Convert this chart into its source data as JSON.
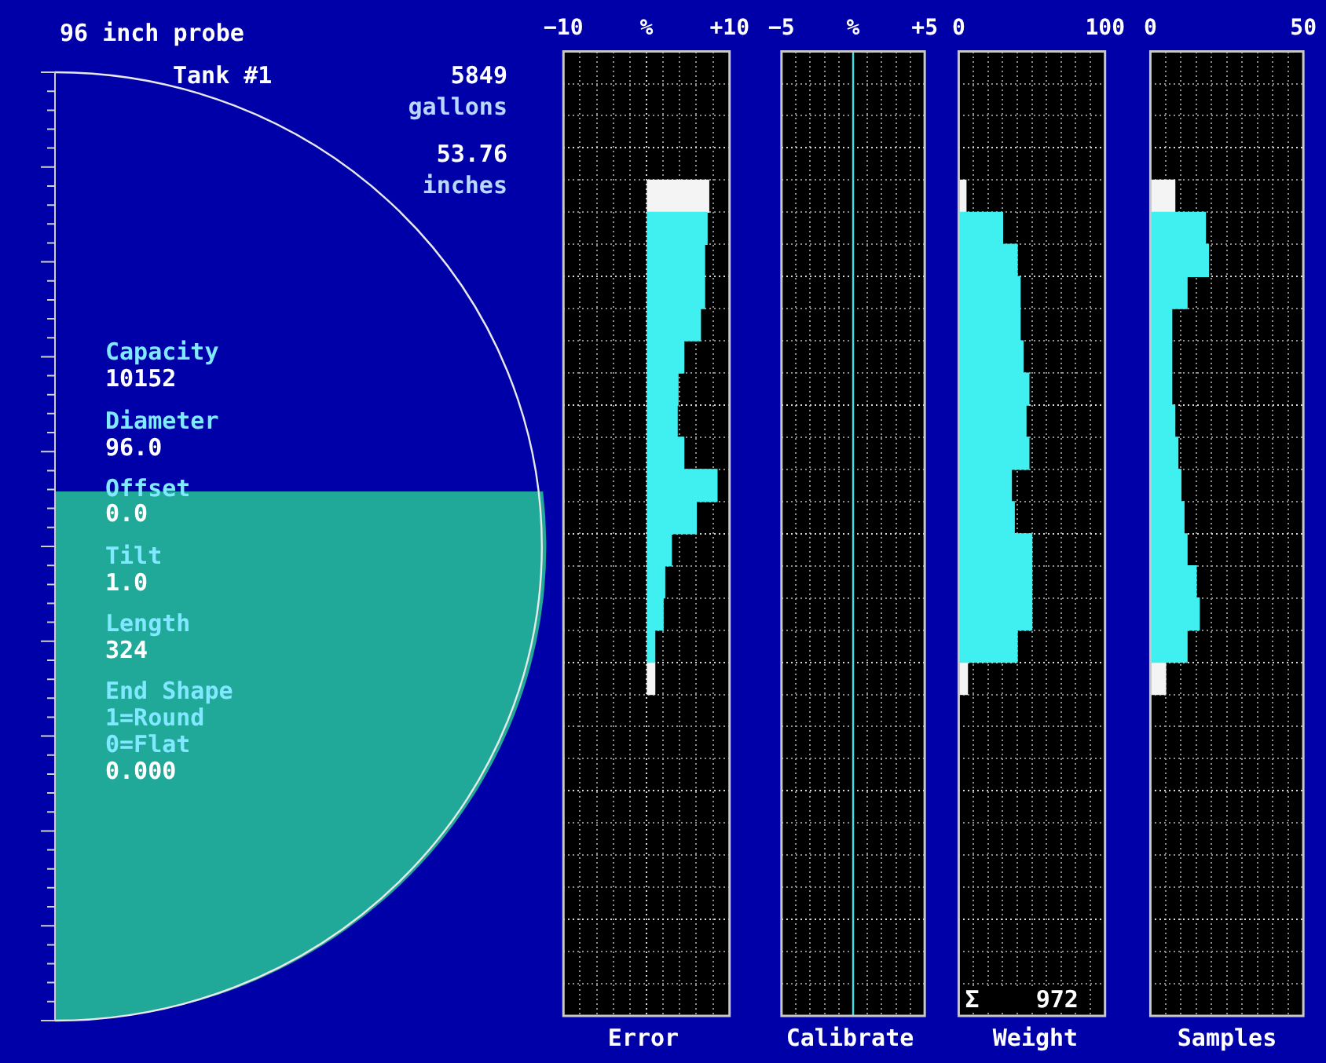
{
  "chart_data": [
    {
      "type": "other",
      "title": "96 inch probe",
      "annotations": [
        "Tank #1",
        "5849",
        "gallons",
        "53.76",
        "inches",
        "Capacity",
        "10152",
        "Diameter",
        "96.0",
        "Offset",
        "0.0",
        "Tilt",
        "1.0",
        "Length",
        "324",
        "End Shape",
        "1=Round",
        "0=Flat",
        "0.000"
      ]
    },
    {
      "type": "bar",
      "title": "Error",
      "orientation": "horizontal",
      "tick_labels": "x",
      "grid": true,
      "xlim": [
        -10,
        10
      ],
      "xticks": [
        {
          "value": -10,
          "label": "−10"
        },
        {
          "value": -8,
          "label": null
        },
        {
          "value": -6,
          "label": null
        },
        {
          "value": -4,
          "label": null
        },
        {
          "value": -2,
          "label": null
        },
        {
          "value": 0,
          "label": "%"
        },
        {
          "value": 2,
          "label": null
        },
        {
          "value": 4,
          "label": null
        },
        {
          "value": 6,
          "label": null
        },
        {
          "value": 8,
          "label": null
        },
        {
          "value": 10,
          "label": "+10"
        }
      ],
      "categories": [
        null,
        null,
        null,
        null,
        null,
        null,
        null,
        null,
        null,
        null,
        null,
        null,
        null,
        null,
        null,
        null,
        null,
        null,
        null,
        null,
        null,
        null,
        null,
        null,
        null,
        null,
        null,
        null,
        null,
        null
      ],
      "series": [
        {
          "color": "#40f0f0",
          "values": [
            null,
            null,
            null,
            null,
            null,
            7.3,
            7,
            7,
            6.5,
            4.5,
            3.8,
            3.7,
            4.5,
            8.5,
            6,
            3,
            2.2,
            2,
            1,
            null,
            null,
            null,
            null,
            null,
            null,
            null,
            null,
            null,
            null,
            null
          ]
        },
        {
          "color": "#f4f4f4",
          "values": [
            null,
            null,
            null,
            null,
            7.5,
            null,
            null,
            null,
            null,
            null,
            null,
            null,
            null,
            null,
            null,
            null,
            null,
            null,
            null,
            1,
            null,
            null,
            null,
            null,
            null,
            null,
            null,
            null,
            null,
            null
          ]
        }
      ]
    },
    {
      "type": "bar",
      "title": "Calibrate",
      "orientation": "horizontal",
      "tick_labels": "x",
      "grid": true,
      "xlim": [
        -5,
        5
      ],
      "xticks": [
        {
          "value": -5,
          "label": "−5"
        },
        {
          "value": -4,
          "label": null
        },
        {
          "value": -3,
          "label": null
        },
        {
          "value": -2,
          "label": null
        },
        {
          "value": -1,
          "label": null
        },
        {
          "value": 0,
          "label": "%"
        },
        {
          "value": 1,
          "label": null
        },
        {
          "value": 2,
          "label": null
        },
        {
          "value": 3,
          "label": null
        },
        {
          "value": 4,
          "label": null
        },
        {
          "value": 5,
          "label": "+5"
        }
      ],
      "categories": [
        null,
        null,
        null,
        null,
        null,
        null,
        null,
        null,
        null,
        null,
        null,
        null,
        null,
        null,
        null,
        null,
        null,
        null,
        null,
        null,
        null,
        null,
        null,
        null,
        null,
        null,
        null,
        null,
        null,
        null
      ],
      "ref_lines": [
        {
          "axis": "x",
          "value": 0,
          "color": "#40e0e0"
        }
      ],
      "series": [
        {
          "color": "#40f0f0",
          "values": [
            null,
            null,
            null,
            null,
            null,
            null,
            null,
            null,
            null,
            null,
            null,
            null,
            null,
            null,
            null,
            null,
            null,
            null,
            null,
            null,
            null,
            null,
            null,
            null,
            null,
            null,
            null,
            null,
            null,
            null
          ]
        }
      ]
    },
    {
      "type": "bar",
      "title": "Weight",
      "orientation": "horizontal",
      "tick_labels": "x",
      "grid": true,
      "xlim": [
        0,
        100
      ],
      "xticks": [
        0,
        {
          "value": 10,
          "label": null
        },
        {
          "value": 20,
          "label": null
        },
        {
          "value": 30,
          "label": null
        },
        {
          "value": 40,
          "label": null
        },
        {
          "value": 50,
          "label": null
        },
        {
          "value": 60,
          "label": null
        },
        {
          "value": 70,
          "label": null
        },
        {
          "value": 80,
          "label": null
        },
        {
          "value": 90,
          "label": null
        },
        100
      ],
      "categories": [
        null,
        null,
        null,
        null,
        null,
        null,
        null,
        null,
        null,
        null,
        null,
        null,
        null,
        null,
        null,
        null,
        null,
        null,
        null,
        null,
        null,
        null,
        null,
        null,
        null,
        null,
        null,
        null,
        null,
        null
      ],
      "annotations": [
        "Σ    972"
      ],
      "series": [
        {
          "color": "#40f0f0",
          "values": [
            null,
            null,
            null,
            null,
            null,
            30,
            40,
            42,
            42,
            44,
            48,
            46,
            48,
            36,
            38,
            50,
            50,
            50,
            40,
            null,
            null,
            null,
            null,
            null,
            null,
            null,
            null,
            null,
            null,
            null
          ]
        },
        {
          "color": "#f4f4f4",
          "values": [
            null,
            null,
            null,
            null,
            5,
            null,
            null,
            null,
            null,
            null,
            null,
            null,
            null,
            null,
            null,
            null,
            null,
            null,
            null,
            6,
            null,
            null,
            null,
            null,
            null,
            null,
            null,
            null,
            null,
            null
          ]
        }
      ]
    },
    {
      "type": "bar",
      "title": "Samples",
      "orientation": "horizontal",
      "tick_labels": "x",
      "grid": true,
      "xlim": [
        0,
        50
      ],
      "xticks": [
        0,
        {
          "value": 5,
          "label": null
        },
        {
          "value": 10,
          "label": null
        },
        {
          "value": 15,
          "label": null
        },
        {
          "value": 20,
          "label": null
        },
        {
          "value": 25,
          "label": null
        },
        {
          "value": 30,
          "label": null
        },
        {
          "value": 35,
          "label": null
        },
        {
          "value": 40,
          "label": null
        },
        {
          "value": 45,
          "label": null
        },
        50
      ],
      "categories": [
        null,
        null,
        null,
        null,
        null,
        null,
        null,
        null,
        null,
        null,
        null,
        null,
        null,
        null,
        null,
        null,
        null,
        null,
        null,
        null,
        null,
        null,
        null,
        null,
        null,
        null,
        null,
        null,
        null,
        null
      ],
      "series": [
        {
          "color": "#40f0f0",
          "values": [
            null,
            null,
            null,
            null,
            null,
            18,
            19,
            12,
            7,
            7,
            7,
            8,
            9,
            10,
            11,
            12,
            15,
            16,
            12,
            null,
            null,
            null,
            null,
            null,
            null,
            null,
            null,
            null,
            null,
            null
          ]
        },
        {
          "color": "#f4f4f4",
          "values": [
            null,
            null,
            null,
            null,
            8,
            null,
            null,
            null,
            null,
            null,
            null,
            null,
            null,
            null,
            null,
            null,
            null,
            null,
            null,
            5,
            null,
            null,
            null,
            null,
            null,
            null,
            null,
            null,
            null,
            null
          ]
        }
      ]
    }
  ]
}
